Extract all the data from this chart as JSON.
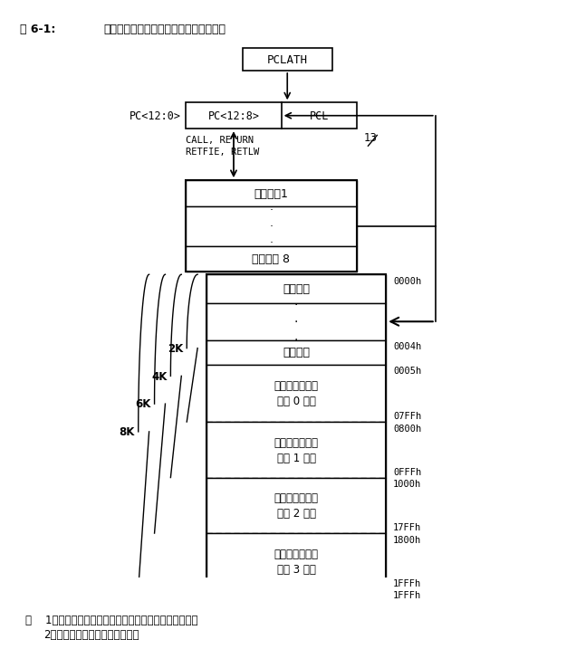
{
  "title_left": "图 6-1:",
  "title_right": "中档系列单片机的程序存储器映射和堆栈",
  "bg_color": "#ffffff",
  "note_line1": "注    1：不是所有的器件都实现了上述全部程序存储空间。",
  "note_line2": "        2：标定数据可写到程序存储器。",
  "pclath_label": "PCLATH",
  "pc_label": "PC<12:0>",
  "pc12_8_label": "PC<12:8>",
  "pcl_label": "PCL",
  "call_label_1": "CALL, RETURN",
  "call_label_2": "RETFIE, RETLW",
  "thirteen_label": "13",
  "stack_depth1": "堆栈深度1",
  "stack_depth8": "堆栈深度 8",
  "mem_addr": {
    "reset_top": "0000h",
    "intr_top": "0004h",
    "page0_top": "0005h",
    "page0_bot": "07FFh",
    "page1_top": "0800h",
    "page1_bot": "0FFFh",
    "page2_top": "1000h",
    "page2_bot": "17FFh",
    "page3_top": "1800h",
    "page3_bot": "1FFFh"
  },
  "mem_labels": [
    "复位向量",
    "中断向量",
    "片内程序存储器\n（第 0 页）",
    "片内程序存储器\n（第 1 页）",
    "片内程序存储器\n（第 2 页）",
    "片内程序存储器\n（第 3 页）"
  ],
  "bracket_labels": [
    "2K",
    "4K",
    "6K",
    "8K"
  ]
}
